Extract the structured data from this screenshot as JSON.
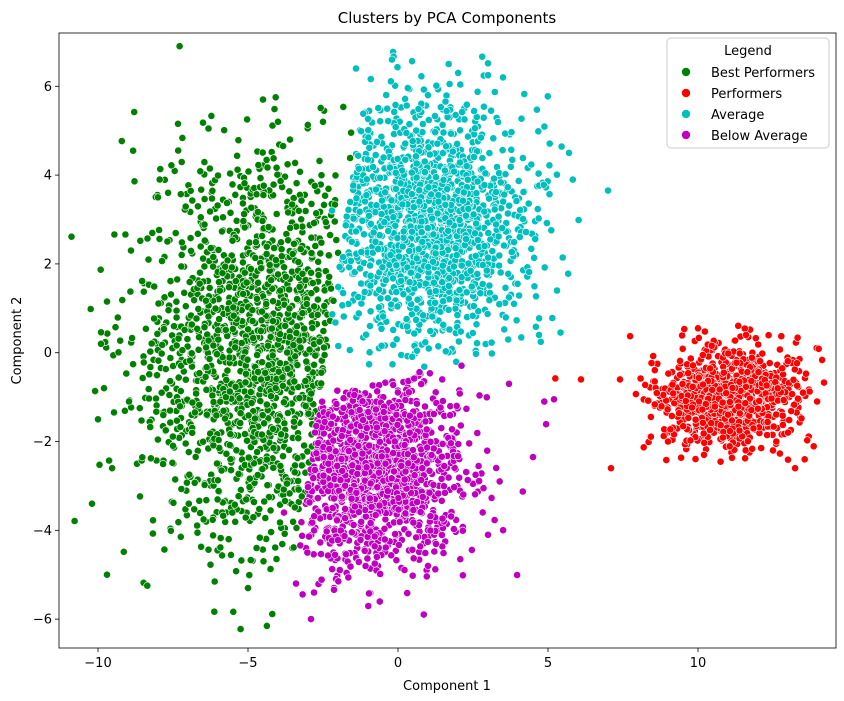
{
  "chart_data": {
    "type": "scatter",
    "title": "Clusters by PCA Components",
    "xlabel": "Component 1",
    "ylabel": "Component 2",
    "xlim": [
      -11.3,
      14.6
    ],
    "ylim": [
      -6.65,
      7.2
    ],
    "xticks": [
      -10,
      -5,
      0,
      5,
      10
    ],
    "yticks": [
      -6,
      -4,
      -2,
      0,
      2,
      4,
      6
    ],
    "grid": false,
    "legend": {
      "title": "Legend",
      "placement": "top-right"
    },
    "series": [
      {
        "name": "Best Performers",
        "color": "#008000",
        "center": [
          -4.6,
          0.0
        ],
        "spread": [
          2.0,
          2.2
        ],
        "count": 1600,
        "region": "x < -2.4 + 0.22*y",
        "sample_points": [
          [
            -10.2,
            -3.4
          ],
          [
            -10.0,
            -1.5
          ],
          [
            -9.9,
            0.2
          ],
          [
            -9.7,
            1.15
          ],
          [
            -9.7,
            -5.0
          ],
          [
            -8.9,
            2.3
          ],
          [
            -8.0,
            3.5
          ],
          [
            -4.5,
            5.7
          ],
          [
            -4.0,
            5.2
          ],
          [
            -5.0,
            -5.3
          ],
          [
            -3.6,
            4.8
          ],
          [
            -2.5,
            5.2
          ]
        ]
      },
      {
        "name": "Performers",
        "color": "#ff0000",
        "center": [
          11.0,
          -1.0
        ],
        "spread": [
          1.2,
          0.55
        ],
        "count": 900,
        "sample_points": [
          [
            7.1,
            -2.6
          ],
          [
            7.4,
            -0.6
          ],
          [
            6.1,
            -0.6
          ],
          [
            9.0,
            -2.0
          ],
          [
            10.0,
            0.55
          ],
          [
            11.6,
            0.4
          ],
          [
            13.5,
            -0.9
          ],
          [
            13.0,
            -1.8
          ],
          [
            12.5,
            -2.2
          ],
          [
            10.2,
            -2.3
          ]
        ]
      },
      {
        "name": "Average",
        "color": "#00bfbf",
        "center": [
          1.0,
          2.9
        ],
        "spread": [
          1.6,
          1.35
        ],
        "count": 1600,
        "region": "x >= -2.4 + 0.22*y and y > -0.5 + 0.15*x",
        "sample_points": [
          [
            -1.4,
            6.4
          ],
          [
            -0.2,
            6.6
          ],
          [
            3.0,
            6.25
          ],
          [
            3.5,
            6.2
          ],
          [
            5.7,
            4.5
          ],
          [
            7.0,
            3.65
          ],
          [
            5.3,
            1.4
          ],
          [
            4.7,
            0.4
          ],
          [
            -2.2,
            3.2
          ],
          [
            1.0,
            5.8
          ]
        ]
      },
      {
        "name": "Below Average",
        "color": "#bf00bf",
        "center": [
          -0.8,
          -2.5
        ],
        "spread": [
          1.5,
          1.1
        ],
        "count": 1400,
        "region": "x >= -2.4 + 0.22*y and y <= -0.5 + 0.15*x",
        "sample_points": [
          [
            -2.9,
            -6.0
          ],
          [
            -2.8,
            -5.4
          ],
          [
            -3.4,
            -5.2
          ],
          [
            5.2,
            -1.05
          ],
          [
            4.5,
            -2.35
          ],
          [
            3.7,
            -0.7
          ],
          [
            -3.8,
            -3.6
          ],
          [
            1.0,
            -4.8
          ],
          [
            3.0,
            -4.1
          ]
        ]
      }
    ]
  }
}
